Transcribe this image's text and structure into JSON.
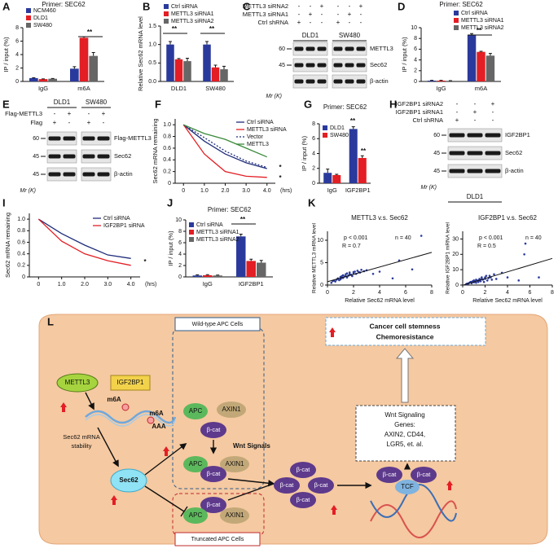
{
  "chart_data": [
    {
      "panel": "A",
      "type": "bar",
      "title": "Primer: SEC62",
      "ylabel": "IP / input (%)",
      "categories": [
        "IgG",
        "m6A"
      ],
      "series": [
        {
          "name": "NCM460",
          "color": "#2a3a9c",
          "values": [
            0.5,
            1.9
          ],
          "errors": [
            0.05,
            0.3
          ]
        },
        {
          "name": "DLD1",
          "color": "#e31e24",
          "values": [
            0.35,
            6.5
          ],
          "errors": [
            0.03,
            0.15
          ]
        },
        {
          "name": "SW480",
          "color": "#666666",
          "values": [
            0.4,
            3.8
          ],
          "errors": [
            0.04,
            0.5
          ]
        }
      ],
      "ylim": [
        0,
        8
      ],
      "yticks": [
        0,
        2,
        4,
        6,
        8
      ],
      "legend": "upper left",
      "annotations": [
        "**"
      ]
    },
    {
      "panel": "B",
      "type": "bar",
      "ylabel": "Relative Sec62 mRNA level",
      "categories": [
        "DLD1",
        "SW480"
      ],
      "series": [
        {
          "name": "Ctrl siRNA",
          "color": "#2a3a9c",
          "values": [
            1.0,
            1.0
          ],
          "errors": [
            0.08,
            0.08
          ]
        },
        {
          "name": "METTL3 siRNA1",
          "color": "#e31e24",
          "values": [
            0.6,
            0.38
          ],
          "errors": [
            0.02,
            0.06
          ]
        },
        {
          "name": "METTL3 siRNA2",
          "color": "#666666",
          "values": [
            0.55,
            0.33
          ],
          "errors": [
            0.08,
            0.08
          ]
        }
      ],
      "ylim": [
        0,
        1.5
      ],
      "yticks": [
        {
          "value": 0,
          "label": "0.0"
        },
        0.5,
        {
          "value": 1,
          "label": "1.0"
        },
        1.5
      ],
      "legend": "upper left",
      "annotations": [
        "**",
        "**"
      ]
    },
    {
      "panel": "D",
      "type": "bar",
      "title": "Primer: SEC62",
      "ylabel": "IP / input (%)",
      "categories": [
        "IgG",
        "m6A"
      ],
      "series": [
        {
          "name": "Ctrl siRNA",
          "color": "#2a3a9c",
          "values": [
            0.15,
            8.6
          ],
          "errors": [
            0.05,
            0.3
          ]
        },
        {
          "name": "METTL3 siRNA1",
          "color": "#e31e24",
          "values": [
            0.15,
            5.5
          ],
          "errors": [
            0.05,
            0.1
          ]
        },
        {
          "name": "METTL3 siRNA2",
          "color": "#666666",
          "values": [
            0.12,
            4.8
          ],
          "errors": [
            0.04,
            0.4
          ]
        }
      ],
      "ylim": [
        0,
        10
      ],
      "yticks": [
        0,
        2,
        4,
        6,
        8,
        10
      ],
      "legend": "upper right",
      "annotations": [
        "**"
      ]
    },
    {
      "panel": "F",
      "type": "line",
      "ylabel": "Sec62 mRNA remaining",
      "xlabel": "(hrs)",
      "x": [
        0,
        1,
        2,
        3,
        4
      ],
      "xlim": [
        -0.4,
        4.4
      ],
      "xticks": [
        0,
        {
          "value": 1,
          "label": "1.0"
        },
        {
          "value": 2,
          "label": "2.0"
        },
        {
          "value": 3,
          "label": "3.0"
        },
        {
          "value": 4,
          "label": "4.0"
        }
      ],
      "ylim": [
        0,
        1.1
      ],
      "yticks": [
        0,
        0.2,
        0.4,
        0.6,
        0.8,
        {
          "value": 1,
          "label": "1.0"
        }
      ],
      "series": [
        {
          "name": "Ctrl siRNA",
          "color": "#1f2d7a",
          "style": "solid",
          "values": [
            1,
            0.72,
            0.5,
            0.35,
            0.25
          ]
        },
        {
          "name": "METTL3 siRNA",
          "color": "#e31e24",
          "style": "solid",
          "values": [
            1,
            0.5,
            0.2,
            0.12,
            0.1
          ]
        },
        {
          "name": "Vector",
          "color": "#1f2d7a",
          "style": "dotted",
          "values": [
            1,
            0.78,
            0.55,
            0.38,
            0.27
          ]
        },
        {
          "name": "METTL3",
          "color": "#3a8a3a",
          "style": "solid",
          "values": [
            1,
            0.85,
            0.75,
            0.6,
            0.45
          ]
        }
      ],
      "legend": "upper right",
      "annotations": [
        "*",
        "*"
      ]
    },
    {
      "panel": "G",
      "type": "bar",
      "title": "Primer: SEC62",
      "ylabel": "IP / input (%)",
      "categories": [
        "IgG",
        "IGF2BP1"
      ],
      "series": [
        {
          "name": "DLD1",
          "color": "#2a3a9c",
          "values": [
            1.4,
            7.3
          ],
          "errors": [
            0.5,
            0.3
          ]
        },
        {
          "name": "SW480",
          "color": "#e31e24",
          "values": [
            1.1,
            3.4
          ],
          "errors": [
            0.1,
            0.3
          ]
        }
      ],
      "ylim": [
        0,
        8
      ],
      "yticks": [
        0,
        2,
        4,
        6,
        8
      ],
      "legend": "upper left",
      "annotations": [
        "**",
        "**"
      ]
    },
    {
      "panel": "I",
      "type": "line",
      "ylabel": "Sec62 mRNA remaining",
      "xlabel": "(hrs)",
      "x": [
        0,
        1,
        2,
        3,
        4
      ],
      "xlim": [
        -0.4,
        4.4
      ],
      "xticks": [
        0,
        {
          "value": 1,
          "label": "1.0"
        },
        {
          "value": 2,
          "label": "2.0"
        },
        {
          "value": 3,
          "label": "3.0"
        },
        {
          "value": 4,
          "label": "4.0"
        }
      ],
      "ylim": [
        0,
        1.1
      ],
      "yticks": [
        0,
        0.2,
        0.4,
        0.6,
        0.8,
        {
          "value": 1,
          "label": "1.0"
        }
      ],
      "series": [
        {
          "name": "Ctrl siRNA",
          "color": "#1f2d7a",
          "style": "solid",
          "values": [
            1,
            0.75,
            0.55,
            0.38,
            0.32
          ]
        },
        {
          "name": "IGF2BP1 siRNA",
          "color": "#e31e24",
          "style": "solid",
          "values": [
            1,
            0.62,
            0.4,
            0.28,
            0.2
          ]
        }
      ],
      "legend": "upper right",
      "annotations": [
        "*"
      ]
    },
    {
      "panel": "J",
      "type": "bar",
      "title": "Primer: SEC62",
      "ylabel": "IP / input (%)",
      "categories": [
        "IgG",
        "IGF2BP1"
      ],
      "series": [
        {
          "name": "Ctrl siRNA",
          "color": "#2a3a9c",
          "values": [
            0.25,
            7.1
          ],
          "errors": [
            0.1,
            0.4
          ]
        },
        {
          "name": "METTL3 siRNA1",
          "color": "#e31e24",
          "values": [
            0.3,
            2.8
          ],
          "errors": [
            0.1,
            0.3
          ]
        },
        {
          "name": "METTL3 siRNA2",
          "color": "#666666",
          "values": [
            0.25,
            2.5
          ],
          "errors": [
            0.08,
            0.4
          ]
        }
      ],
      "ylim": [
        0,
        10
      ],
      "yticks": [
        0,
        2,
        4,
        6,
        8,
        10
      ],
      "legend": "upper left",
      "annotations": [
        "**"
      ]
    },
    {
      "panel": "K",
      "type": "scatter",
      "title": "METTL3 v.s. Sec62",
      "xlabel": "Relative Sec62 mRNA level",
      "ylabel": "Relative METTL3 mRNA level",
      "color": "#2a3a9c",
      "x": [
        0.3,
        0.5,
        0.6,
        0.7,
        0.8,
        0.9,
        1.0,
        1.0,
        1.1,
        1.2,
        1.2,
        1.3,
        1.4,
        1.5,
        1.5,
        1.6,
        1.7,
        1.8,
        1.9,
        2.0,
        2.1,
        2.2,
        2.3,
        2.5,
        2.6,
        0.4,
        0.8,
        1.1,
        1.4,
        1.7,
        2.0,
        2.4,
        2.8,
        3.0,
        3.5,
        4.0,
        5.0,
        5.5,
        6.5,
        7.2
      ],
      "y": [
        0.5,
        1.0,
        0.8,
        1.2,
        1.5,
        1.1,
        1.8,
        1.3,
        2.0,
        1.6,
        2.2,
        1.9,
        2.4,
        1.7,
        2.6,
        2.1,
        2.8,
        2.3,
        2.0,
        2.9,
        3.0,
        2.5,
        3.2,
        2.8,
        3.4,
        0.9,
        1.4,
        1.6,
        2.0,
        2.4,
        2.6,
        2.9,
        3.1,
        3.3,
        2.5,
        3.0,
        1.5,
        5.5,
        3.5,
        11.0
      ],
      "xlim": [
        0,
        8
      ],
      "xticks": [
        0,
        2,
        4,
        6,
        8
      ],
      "ylim": [
        0,
        12
      ],
      "yticks": [
        0,
        5,
        10
      ],
      "annotations": [
        "p < 0.001",
        "R = 0.7",
        "n = 40"
      ]
    },
    {
      "type": "scatter",
      "title": "IGF2BP1 v.s. Sec62",
      "xlabel": "Relative Sec62 mRNA level",
      "ylabel": "Relative IGF2BP1 mRNA level",
      "color": "#2a3a9c",
      "x": [
        0.3,
        0.5,
        0.6,
        0.7,
        0.8,
        0.9,
        1.0,
        1.0,
        1.1,
        1.2,
        1.2,
        1.3,
        1.4,
        1.5,
        1.5,
        1.6,
        1.7,
        1.8,
        1.9,
        2.0,
        2.1,
        2.2,
        2.3,
        2.5,
        2.6,
        0.4,
        0.8,
        1.1,
        1.4,
        1.7,
        2.0,
        2.4,
        2.8,
        3.0,
        3.5,
        4.0,
        5.0,
        5.5,
        5.6,
        6.8
      ],
      "y": [
        0.5,
        1,
        1.5,
        2,
        1.2,
        2.5,
        1.8,
        3,
        2.2,
        1.5,
        3.5,
        2.8,
        2,
        4,
        3,
        2.5,
        5,
        3.5,
        2,
        4,
        6,
        3,
        4.5,
        5,
        3.5,
        1,
        2,
        2.5,
        3,
        4,
        5,
        6,
        7,
        4,
        8,
        5,
        3,
        20,
        27,
        5
      ],
      "xlim": [
        0,
        8
      ],
      "xticks": [
        0,
        2,
        4,
        6,
        8
      ],
      "ylim": [
        0,
        35
      ],
      "yticks": [
        0,
        10,
        20,
        30
      ],
      "annotations": [
        "p < 0.001",
        "R = 0.5",
        "n = 40"
      ]
    }
  ],
  "blots": [
    {
      "panel": "C",
      "cell_lines": [
        "DLD1",
        "SW480"
      ],
      "conditions": [
        {
          "name": "METTL3 siRNA2",
          "marks": [
            "-",
            "-",
            "+",
            "-",
            "-",
            "+"
          ]
        },
        {
          "name": "METTL3 siRNA1",
          "marks": [
            "-",
            "+",
            "-",
            "-",
            "+",
            "-"
          ]
        },
        {
          "name": "Ctrl shRNA",
          "marks": [
            "+",
            "-",
            "-",
            "+",
            "-",
            "-"
          ]
        }
      ],
      "rows": [
        "METTL3",
        "Sec62",
        "β-actin"
      ],
      "markers": [
        "60",
        "45",
        null
      ],
      "mr": "Mr (K)"
    },
    {
      "panel": "E",
      "cell_lines": [
        "DLD1",
        "SW480"
      ],
      "conditions": [
        {
          "name": "Flag-METTL3",
          "marks": [
            "-",
            "+",
            "-",
            "+"
          ]
        },
        {
          "name": "Flag",
          "marks": [
            "+",
            "-",
            "+",
            "-"
          ]
        }
      ],
      "rows": [
        "Flag-METTL3",
        "Sec62",
        "β-actin"
      ],
      "markers": [
        "60",
        "45",
        "45"
      ],
      "mr": "Mr (K)"
    },
    {
      "panel": "H",
      "cell_lines": [
        "DLD1"
      ],
      "conditions": [
        {
          "name": "IGF2BP1 siRNA2",
          "marks": [
            "-",
            "-",
            "+"
          ]
        },
        {
          "name": "IGF2BP1 siRNA1",
          "marks": [
            "-",
            "+",
            "-"
          ]
        },
        {
          "name": "Ctrl shRNA",
          "marks": [
            "+",
            "-",
            "-"
          ]
        }
      ],
      "rows": [
        "IGF2BP1",
        "Sec62",
        "β-actin"
      ],
      "markers": [
        "60",
        "45",
        "45"
      ],
      "mr": "Mr (K)"
    }
  ],
  "diagram": {
    "panel": "L",
    "labels": [
      "Wild-type APC Cells",
      "Truncated APC Cells",
      "Cancer cell stemness",
      "Chemoresistance",
      "Wnt Signaling",
      "Genes:",
      "AXIN2, CD44,",
      "LGR5, et. al.",
      "METTL3",
      "IGF2BP1",
      "m6A",
      "m6A",
      "AAA",
      "Sec62 mRNA",
      "stability",
      "Sec62",
      "APC",
      "AXIN1",
      "β-cat",
      "Wnt Signals",
      "APC",
      "AXIN1",
      "β-cat",
      "β-cat",
      "APC",
      "AXIN1",
      "β-cat",
      "β-cat",
      "β-cat",
      "β-cat",
      "β-cat",
      "β-cat",
      "TCF"
    ]
  }
}
